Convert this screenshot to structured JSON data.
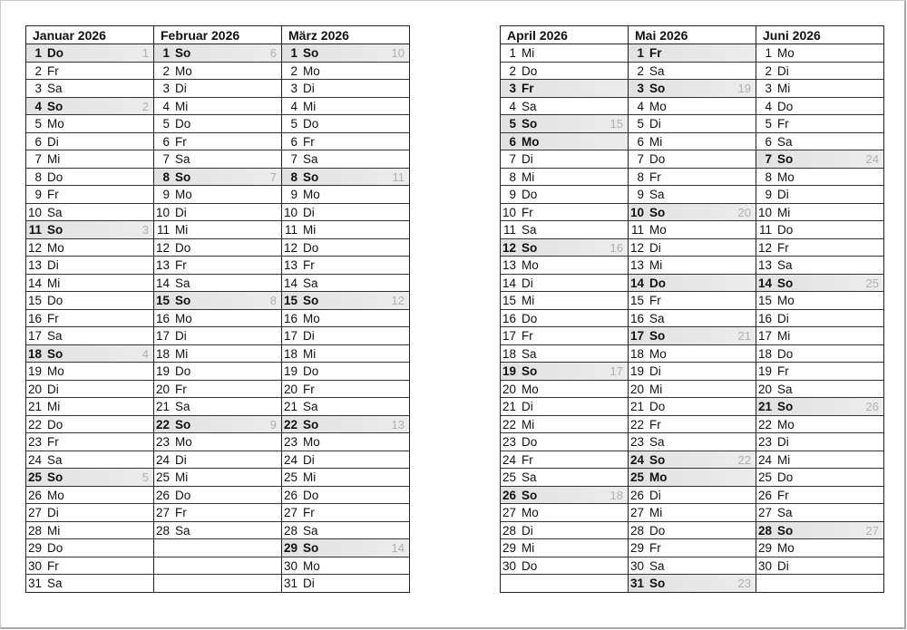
{
  "halves": [
    {
      "months": [
        {
          "title": "Januar 2026",
          "days": [
            [
              "1",
              "Do",
              "1",
              1
            ],
            [
              "2",
              "Fr",
              "",
              0
            ],
            [
              "3",
              "Sa",
              "",
              0
            ],
            [
              "4",
              "So",
              "2",
              1
            ],
            [
              "5",
              "Mo",
              "",
              0
            ],
            [
              "6",
              "Di",
              "",
              0
            ],
            [
              "7",
              "Mi",
              "",
              0
            ],
            [
              "8",
              "Do",
              "",
              0
            ],
            [
              "9",
              "Fr",
              "",
              0
            ],
            [
              "10",
              "Sa",
              "",
              0
            ],
            [
              "11",
              "So",
              "3",
              1
            ],
            [
              "12",
              "Mo",
              "",
              0
            ],
            [
              "13",
              "Di",
              "",
              0
            ],
            [
              "14",
              "Mi",
              "",
              0
            ],
            [
              "15",
              "Do",
              "",
              0
            ],
            [
              "16",
              "Fr",
              "",
              0
            ],
            [
              "17",
              "Sa",
              "",
              0
            ],
            [
              "18",
              "So",
              "4",
              1
            ],
            [
              "19",
              "Mo",
              "",
              0
            ],
            [
              "20",
              "Di",
              "",
              0
            ],
            [
              "21",
              "Mi",
              "",
              0
            ],
            [
              "22",
              "Do",
              "",
              0
            ],
            [
              "23",
              "Fr",
              "",
              0
            ],
            [
              "24",
              "Sa",
              "",
              0
            ],
            [
              "25",
              "So",
              "5",
              1
            ],
            [
              "26",
              "Mo",
              "",
              0
            ],
            [
              "27",
              "Di",
              "",
              0
            ],
            [
              "28",
              "Mi",
              "",
              0
            ],
            [
              "29",
              "Do",
              "",
              0
            ],
            [
              "30",
              "Fr",
              "",
              0
            ],
            [
              "31",
              "Sa",
              "",
              0
            ]
          ]
        },
        {
          "title": "Februar 2026",
          "days": [
            [
              "1",
              "So",
              "6",
              1
            ],
            [
              "2",
              "Mo",
              "",
              0
            ],
            [
              "3",
              "Di",
              "",
              0
            ],
            [
              "4",
              "Mi",
              "",
              0
            ],
            [
              "5",
              "Do",
              "",
              0
            ],
            [
              "6",
              "Fr",
              "",
              0
            ],
            [
              "7",
              "Sa",
              "",
              0
            ],
            [
              "8",
              "So",
              "7",
              1
            ],
            [
              "9",
              "Mo",
              "",
              0
            ],
            [
              "10",
              "Di",
              "",
              0
            ],
            [
              "11",
              "Mi",
              "",
              0
            ],
            [
              "12",
              "Do",
              "",
              0
            ],
            [
              "13",
              "Fr",
              "",
              0
            ],
            [
              "14",
              "Sa",
              "",
              0
            ],
            [
              "15",
              "So",
              "8",
              1
            ],
            [
              "16",
              "Mo",
              "",
              0
            ],
            [
              "17",
              "Di",
              "",
              0
            ],
            [
              "18",
              "Mi",
              "",
              0
            ],
            [
              "19",
              "Do",
              "",
              0
            ],
            [
              "20",
              "Fr",
              "",
              0
            ],
            [
              "21",
              "Sa",
              "",
              0
            ],
            [
              "22",
              "So",
              "9",
              1
            ],
            [
              "23",
              "Mo",
              "",
              0
            ],
            [
              "24",
              "Di",
              "",
              0
            ],
            [
              "25",
              "Mi",
              "",
              0
            ],
            [
              "26",
              "Do",
              "",
              0
            ],
            [
              "27",
              "Fr",
              "",
              0
            ],
            [
              "28",
              "Sa",
              "",
              0
            ]
          ]
        },
        {
          "title": "März 2026",
          "days": [
            [
              "1",
              "So",
              "10",
              1
            ],
            [
              "2",
              "Mo",
              "",
              0
            ],
            [
              "3",
              "Di",
              "",
              0
            ],
            [
              "4",
              "Mi",
              "",
              0
            ],
            [
              "5",
              "Do",
              "",
              0
            ],
            [
              "6",
              "Fr",
              "",
              0
            ],
            [
              "7",
              "Sa",
              "",
              0
            ],
            [
              "8",
              "So",
              "11",
              1
            ],
            [
              "9",
              "Mo",
              "",
              0
            ],
            [
              "10",
              "Di",
              "",
              0
            ],
            [
              "11",
              "Mi",
              "",
              0
            ],
            [
              "12",
              "Do",
              "",
              0
            ],
            [
              "13",
              "Fr",
              "",
              0
            ],
            [
              "14",
              "Sa",
              "",
              0
            ],
            [
              "15",
              "So",
              "12",
              1
            ],
            [
              "16",
              "Mo",
              "",
              0
            ],
            [
              "17",
              "Di",
              "",
              0
            ],
            [
              "18",
              "Mi",
              "",
              0
            ],
            [
              "19",
              "Do",
              "",
              0
            ],
            [
              "20",
              "Fr",
              "",
              0
            ],
            [
              "21",
              "Sa",
              "",
              0
            ],
            [
              "22",
              "So",
              "13",
              1
            ],
            [
              "23",
              "Mo",
              "",
              0
            ],
            [
              "24",
              "Di",
              "",
              0
            ],
            [
              "25",
              "Mi",
              "",
              0
            ],
            [
              "26",
              "Do",
              "",
              0
            ],
            [
              "27",
              "Fr",
              "",
              0
            ],
            [
              "28",
              "Sa",
              "",
              0
            ],
            [
              "29",
              "So",
              "14",
              1
            ],
            [
              "30",
              "Mo",
              "",
              0
            ],
            [
              "31",
              "Di",
              "",
              0
            ]
          ]
        }
      ]
    },
    {
      "months": [
        {
          "title": "April 2026",
          "days": [
            [
              "1",
              "Mi",
              "",
              0
            ],
            [
              "2",
              "Do",
              "",
              0
            ],
            [
              "3",
              "Fr",
              "",
              1
            ],
            [
              "4",
              "Sa",
              "",
              0
            ],
            [
              "5",
              "So",
              "15",
              1
            ],
            [
              "6",
              "Mo",
              "",
              1
            ],
            [
              "7",
              "Di",
              "",
              0
            ],
            [
              "8",
              "Mi",
              "",
              0
            ],
            [
              "9",
              "Do",
              "",
              0
            ],
            [
              "10",
              "Fr",
              "",
              0
            ],
            [
              "11",
              "Sa",
              "",
              0
            ],
            [
              "12",
              "So",
              "16",
              1
            ],
            [
              "13",
              "Mo",
              "",
              0
            ],
            [
              "14",
              "Di",
              "",
              0
            ],
            [
              "15",
              "Mi",
              "",
              0
            ],
            [
              "16",
              "Do",
              "",
              0
            ],
            [
              "17",
              "Fr",
              "",
              0
            ],
            [
              "18",
              "Sa",
              "",
              0
            ],
            [
              "19",
              "So",
              "17",
              1
            ],
            [
              "20",
              "Mo",
              "",
              0
            ],
            [
              "21",
              "Di",
              "",
              0
            ],
            [
              "22",
              "Mi",
              "",
              0
            ],
            [
              "23",
              "Do",
              "",
              0
            ],
            [
              "24",
              "Fr",
              "",
              0
            ],
            [
              "25",
              "Sa",
              "",
              0
            ],
            [
              "26",
              "So",
              "18",
              1
            ],
            [
              "27",
              "Mo",
              "",
              0
            ],
            [
              "28",
              "Di",
              "",
              0
            ],
            [
              "29",
              "Mi",
              "",
              0
            ],
            [
              "30",
              "Do",
              "",
              0
            ]
          ]
        },
        {
          "title": "Mai 2026",
          "days": [
            [
              "1",
              "Fr",
              "",
              1
            ],
            [
              "2",
              "Sa",
              "",
              0
            ],
            [
              "3",
              "So",
              "19",
              1
            ],
            [
              "4",
              "Mo",
              "",
              0
            ],
            [
              "5",
              "Di",
              "",
              0
            ],
            [
              "6",
              "Mi",
              "",
              0
            ],
            [
              "7",
              "Do",
              "",
              0
            ],
            [
              "8",
              "Fr",
              "",
              0
            ],
            [
              "9",
              "Sa",
              "",
              0
            ],
            [
              "10",
              "So",
              "20",
              1
            ],
            [
              "11",
              "Mo",
              "",
              0
            ],
            [
              "12",
              "Di",
              "",
              0
            ],
            [
              "13",
              "Mi",
              "",
              0
            ],
            [
              "14",
              "Do",
              "",
              1
            ],
            [
              "15",
              "Fr",
              "",
              0
            ],
            [
              "16",
              "Sa",
              "",
              0
            ],
            [
              "17",
              "So",
              "21",
              1
            ],
            [
              "18",
              "Mo",
              "",
              0
            ],
            [
              "19",
              "Di",
              "",
              0
            ],
            [
              "20",
              "Mi",
              "",
              0
            ],
            [
              "21",
              "Do",
              "",
              0
            ],
            [
              "22",
              "Fr",
              "",
              0
            ],
            [
              "23",
              "Sa",
              "",
              0
            ],
            [
              "24",
              "So",
              "22",
              1
            ],
            [
              "25",
              "Mo",
              "",
              1
            ],
            [
              "26",
              "Di",
              "",
              0
            ],
            [
              "27",
              "Mi",
              "",
              0
            ],
            [
              "28",
              "Do",
              "",
              0
            ],
            [
              "29",
              "Fr",
              "",
              0
            ],
            [
              "30",
              "Sa",
              "",
              0
            ],
            [
              "31",
              "So",
              "23",
              1
            ]
          ]
        },
        {
          "title": "Juni 2026",
          "days": [
            [
              "1",
              "Mo",
              "",
              0
            ],
            [
              "2",
              "Di",
              "",
              0
            ],
            [
              "3",
              "Mi",
              "",
              0
            ],
            [
              "4",
              "Do",
              "",
              0
            ],
            [
              "5",
              "Fr",
              "",
              0
            ],
            [
              "6",
              "Sa",
              "",
              0
            ],
            [
              "7",
              "So",
              "24",
              1
            ],
            [
              "8",
              "Mo",
              "",
              0
            ],
            [
              "9",
              "Di",
              "",
              0
            ],
            [
              "10",
              "Mi",
              "",
              0
            ],
            [
              "11",
              "Do",
              "",
              0
            ],
            [
              "12",
              "Fr",
              "",
              0
            ],
            [
              "13",
              "Sa",
              "",
              0
            ],
            [
              "14",
              "So",
              "25",
              1
            ],
            [
              "15",
              "Mo",
              "",
              0
            ],
            [
              "16",
              "Di",
              "",
              0
            ],
            [
              "17",
              "Mi",
              "",
              0
            ],
            [
              "18",
              "Do",
              "",
              0
            ],
            [
              "19",
              "Fr",
              "",
              0
            ],
            [
              "20",
              "Sa",
              "",
              0
            ],
            [
              "21",
              "So",
              "26",
              1
            ],
            [
              "22",
              "Mo",
              "",
              0
            ],
            [
              "23",
              "Di",
              "",
              0
            ],
            [
              "24",
              "Mi",
              "",
              0
            ],
            [
              "25",
              "Do",
              "",
              0
            ],
            [
              "26",
              "Fr",
              "",
              0
            ],
            [
              "27",
              "Sa",
              "",
              0
            ],
            [
              "28",
              "So",
              "27",
              1
            ],
            [
              "29",
              "Mo",
              "",
              0
            ],
            [
              "30",
              "Di",
              "",
              0
            ]
          ]
        }
      ]
    }
  ]
}
